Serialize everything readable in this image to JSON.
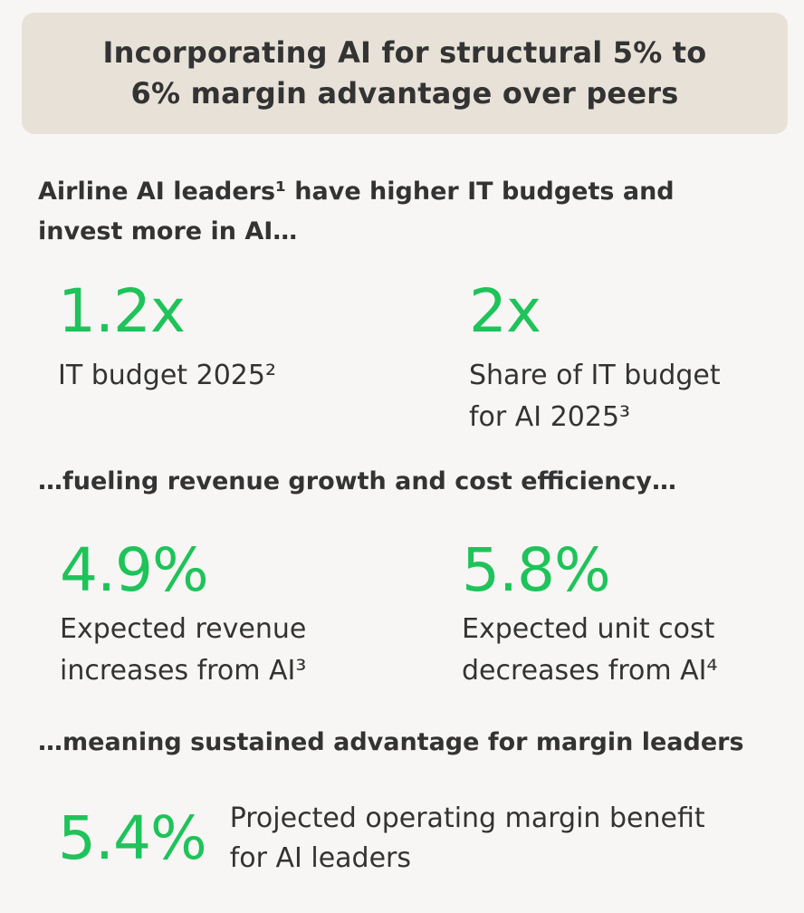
{
  "header": {
    "title_line1": "Incorporating AI for structural 5% to",
    "title_line2": "6% margin advantage over peers"
  },
  "section1": {
    "heading_line1": "Airline AI leaders¹ have higher IT budgets and",
    "heading_line2": "invest more in AI…",
    "stats": [
      {
        "value": "1.2x",
        "label_line1": "IT budget 2025²",
        "label_line2": ""
      },
      {
        "value": "2x",
        "label_line1": "Share of IT budget",
        "label_line2": "for AI 2025³"
      }
    ]
  },
  "section2": {
    "heading": "…fueling revenue growth and cost efficiency…",
    "stats": [
      {
        "value": "4.9%",
        "label_line1": "Expected revenue",
        "label_line2": "increases from AI³"
      },
      {
        "value": "5.8%",
        "label_line1": "Expected unit cost",
        "label_line2": "decreases from AI⁴"
      }
    ]
  },
  "section3": {
    "heading": "…meaning sustained advantage for margin leaders",
    "stat": {
      "value": "5.4%",
      "label_line1": "Projected operating margin benefit",
      "label_line2": "for AI leaders"
    }
  },
  "colors": {
    "accent_green": "#1ec35a",
    "header_bg": "#e8e1d8",
    "page_bg": "#f7f6f4",
    "text": "#333333"
  }
}
